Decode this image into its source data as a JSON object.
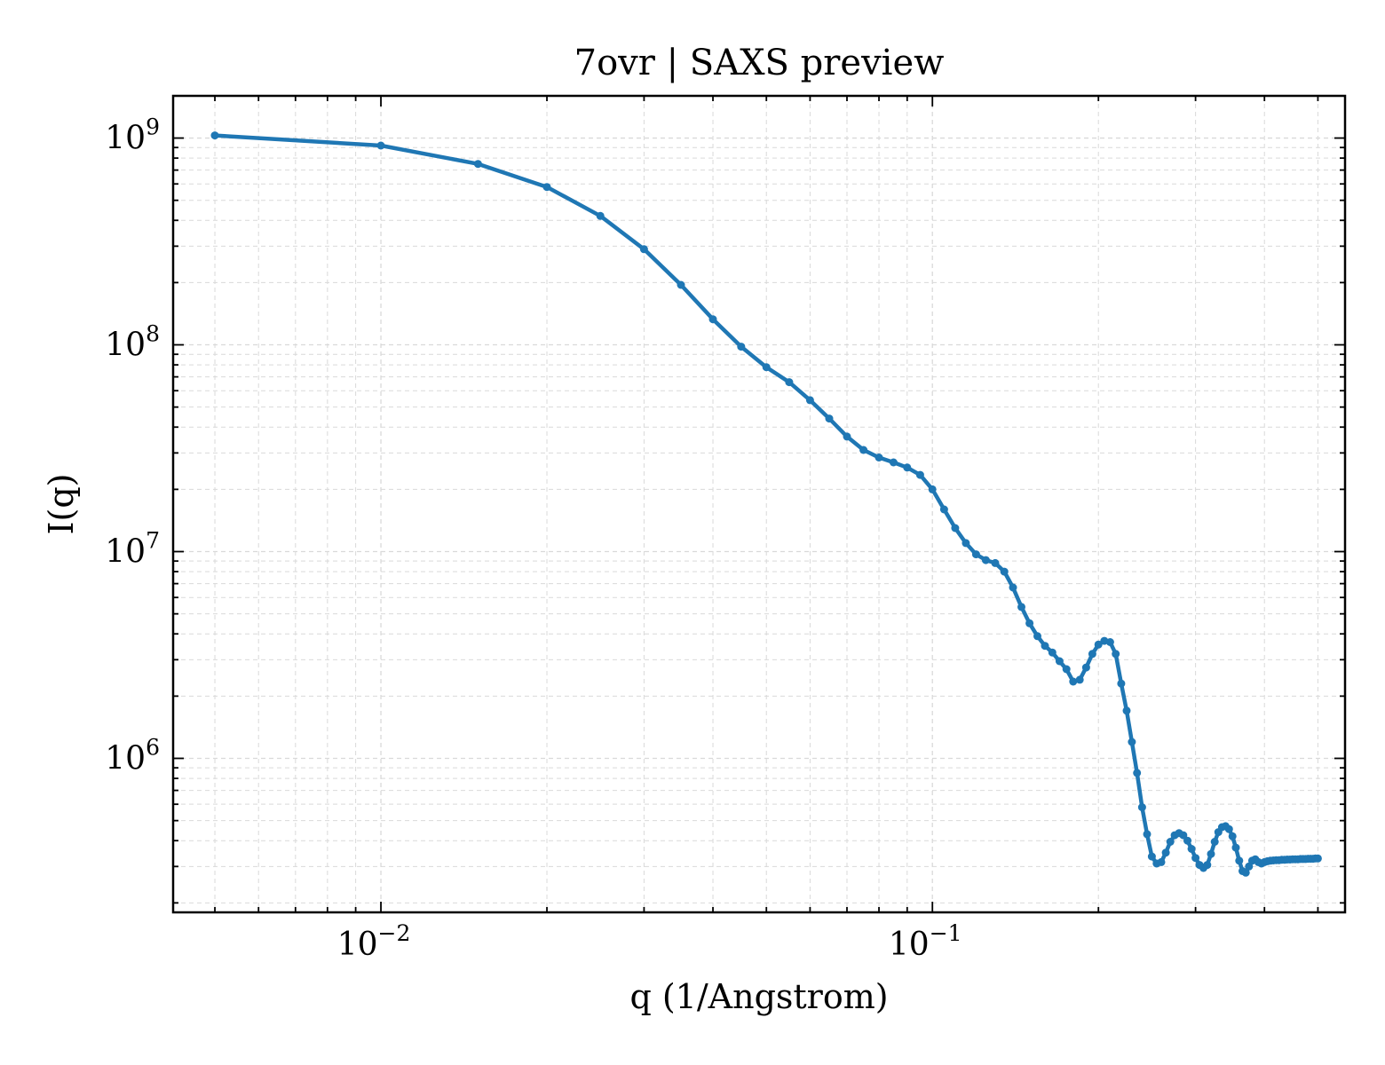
{
  "chart_data": {
    "type": "line",
    "title": "7ovr | SAXS preview",
    "xlabel": "q (1/Angstrom)",
    "ylabel": "I(q)",
    "xscale": "log",
    "yscale": "log",
    "xlim": [
      0.0042,
      0.56
    ],
    "ylim": [
      180000,
      1600000000
    ],
    "grid": true,
    "legend": "none",
    "colors": {
      "line": "#1f77b4",
      "grid": "#d9d9d9",
      "axes": "#000000"
    },
    "x_ticks": [
      {
        "value": 0.01,
        "base": "10",
        "exp": "−2"
      },
      {
        "value": 0.1,
        "base": "10",
        "exp": "−1"
      }
    ],
    "y_ticks": [
      {
        "value": 1000000,
        "base": "10",
        "exp": "6"
      },
      {
        "value": 10000000,
        "base": "10",
        "exp": "7"
      },
      {
        "value": 100000000,
        "base": "10",
        "exp": "8"
      },
      {
        "value": 1000000000,
        "base": "10",
        "exp": "9"
      }
    ],
    "series": [
      {
        "x": [
          0.005,
          0.01,
          0.015,
          0.02,
          0.025,
          0.03,
          0.035,
          0.04,
          0.045,
          0.05,
          0.055,
          0.06,
          0.065,
          0.07,
          0.075,
          0.08,
          0.085,
          0.09,
          0.095,
          0.1,
          0.105,
          0.11,
          0.115,
          0.12,
          0.125,
          0.13,
          0.135,
          0.14,
          0.145,
          0.15,
          0.155,
          0.16,
          0.165,
          0.17,
          0.175,
          0.18,
          0.185,
          0.19,
          0.195,
          0.2,
          0.205,
          0.21,
          0.215,
          0.22,
          0.225,
          0.23,
          0.235,
          0.24,
          0.245,
          0.25,
          0.255,
          0.26,
          0.265,
          0.27,
          0.275,
          0.28,
          0.285,
          0.29,
          0.295,
          0.3,
          0.305,
          0.31,
          0.315,
          0.32,
          0.325,
          0.33,
          0.335,
          0.34,
          0.345,
          0.35,
          0.355,
          0.36,
          0.365,
          0.37,
          0.375,
          0.38,
          0.385,
          0.39,
          0.395,
          0.4,
          0.405,
          0.41,
          0.415,
          0.42,
          0.425,
          0.43,
          0.435,
          0.44,
          0.445,
          0.45,
          0.455,
          0.46,
          0.465,
          0.47,
          0.475,
          0.48,
          0.485,
          0.49,
          0.495,
          0.5
        ],
        "y": [
          1030000000,
          920000000,
          750000000,
          580000000,
          420000000,
          290000000,
          195000000,
          133000000,
          98000000,
          78000000,
          66000000,
          54000000,
          44000000,
          36000000,
          31000000,
          28500000,
          27000000,
          25500000,
          23500000,
          20000000,
          16000000,
          13000000,
          11000000,
          9700000,
          9100000,
          8800000,
          8000000,
          6700000,
          5400000,
          4500000,
          3900000,
          3500000,
          3250000,
          2950000,
          2700000,
          2350000,
          2400000,
          2750000,
          3200000,
          3550000,
          3700000,
          3650000,
          3200000,
          2300000,
          1700000,
          1200000,
          850000,
          580000,
          430000,
          335000,
          310000,
          315000,
          350000,
          395000,
          425000,
          435000,
          425000,
          400000,
          365000,
          330000,
          305000,
          295000,
          305000,
          345000,
          395000,
          440000,
          465000,
          470000,
          455000,
          420000,
          370000,
          320000,
          285000,
          280000,
          300000,
          320000,
          325000,
          315000,
          310000,
          315000,
          318000,
          320000,
          321000,
          322000,
          322000,
          323000,
          323000,
          324000,
          324000,
          325000,
          325000,
          325000,
          326000,
          326000,
          326000,
          327000,
          327000,
          327000,
          328000,
          328000
        ]
      }
    ]
  }
}
